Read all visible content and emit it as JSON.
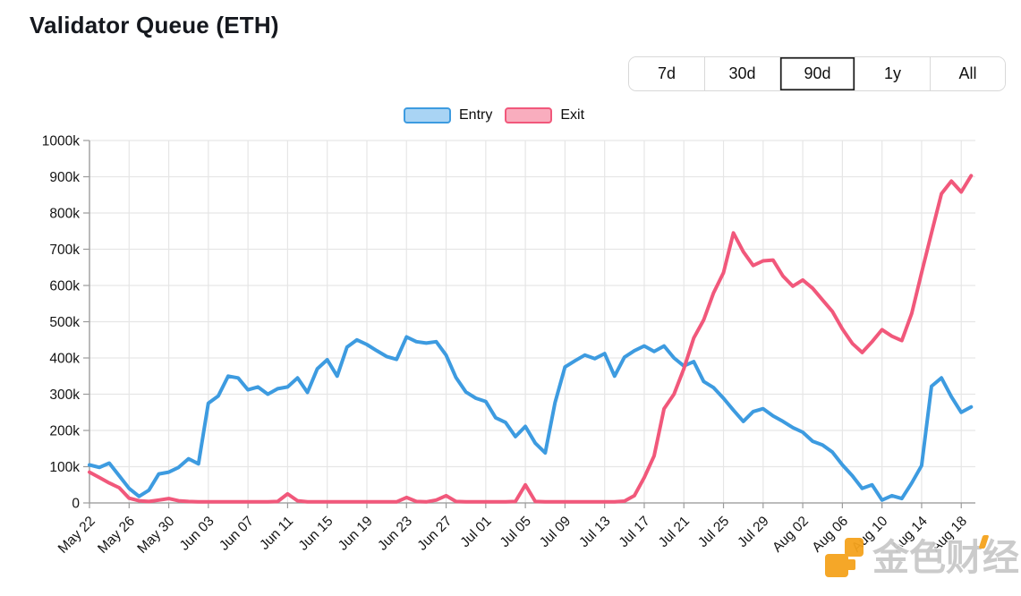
{
  "title": "Validator Queue (ETH)",
  "range_buttons": {
    "options": [
      "7d",
      "30d",
      "90d",
      "1y",
      "All"
    ],
    "selected": "90d"
  },
  "legend": [
    {
      "label": "Entry",
      "line_color": "#3d9be0",
      "fill_color": "#a9d4f4"
    },
    {
      "label": "Exit",
      "line_color": "#f1587b",
      "fill_color": "#f9adbe"
    }
  ],
  "watermark": {
    "text": "金色财经",
    "logo_color": "#f5a31d",
    "text_color": "#c9c9c9"
  },
  "chart_data": {
    "type": "line",
    "title": "Validator Queue (ETH)",
    "xlabel": "",
    "ylabel": "",
    "grid": true,
    "legend_position": "top-center",
    "ylim": [
      0,
      1000
    ],
    "y_unit": "k",
    "ytick_labels": [
      "0",
      "100k",
      "200k",
      "300k",
      "400k",
      "500k",
      "600k",
      "700k",
      "800k",
      "900k",
      "1000k"
    ],
    "xtick_every": 4,
    "xtick_labels": [
      "May 22",
      "May 26",
      "May 30",
      "Jun 03",
      "Jun 07",
      "Jun 11",
      "Jun 15",
      "Jun 19",
      "Jun 23",
      "Jun 27",
      "Jul 01",
      "Jul 05",
      "Jul 09",
      "Jul 13",
      "Jul 17",
      "Jul 21",
      "Jul 25",
      "Jul 29",
      "Aug 02",
      "Aug 06",
      "Aug 10",
      "Aug 14",
      "Aug 18"
    ],
    "x": [
      "May 22",
      "May 23",
      "May 24",
      "May 25",
      "May 26",
      "May 27",
      "May 28",
      "May 29",
      "May 30",
      "May 31",
      "Jun 01",
      "Jun 02",
      "Jun 03",
      "Jun 04",
      "Jun 05",
      "Jun 06",
      "Jun 07",
      "Jun 08",
      "Jun 09",
      "Jun 10",
      "Jun 11",
      "Jun 12",
      "Jun 13",
      "Jun 14",
      "Jun 15",
      "Jun 16",
      "Jun 17",
      "Jun 18",
      "Jun 19",
      "Jun 20",
      "Jun 21",
      "Jun 22",
      "Jun 23",
      "Jun 24",
      "Jun 25",
      "Jun 26",
      "Jun 27",
      "Jun 28",
      "Jun 29",
      "Jun 30",
      "Jul 01",
      "Jul 02",
      "Jul 03",
      "Jul 04",
      "Jul 05",
      "Jul 06",
      "Jul 07",
      "Jul 08",
      "Jul 09",
      "Jul 10",
      "Jul 11",
      "Jul 12",
      "Jul 13",
      "Jul 14",
      "Jul 15",
      "Jul 16",
      "Jul 17",
      "Jul 18",
      "Jul 19",
      "Jul 20",
      "Jul 21",
      "Jul 22",
      "Jul 23",
      "Jul 24",
      "Jul 25",
      "Jul 26",
      "Jul 27",
      "Jul 28",
      "Jul 29",
      "Jul 30",
      "Jul 31",
      "Aug 01",
      "Aug 02",
      "Aug 03",
      "Aug 04",
      "Aug 05",
      "Aug 06",
      "Aug 07",
      "Aug 08",
      "Aug 09",
      "Aug 10",
      "Aug 11",
      "Aug 12",
      "Aug 13",
      "Aug 14",
      "Aug 15",
      "Aug 16",
      "Aug 17",
      "Aug 18",
      "Aug 19"
    ],
    "series": [
      {
        "name": "Entry",
        "color": "#3d9be0",
        "values_unit": "thousand",
        "values": [
          105,
          98,
          110,
          75,
          40,
          18,
          35,
          80,
          85,
          98,
          122,
          108,
          275,
          295,
          350,
          345,
          312,
          320,
          300,
          315,
          320,
          345,
          305,
          370,
          395,
          350,
          430,
          450,
          437,
          420,
          404,
          396,
          458,
          445,
          441,
          445,
          408,
          346,
          306,
          289,
          280,
          235,
          222,
          183,
          211,
          165,
          138,
          277,
          375,
          392,
          408,
          398,
          412,
          350,
          402,
          420,
          433,
          418,
          433,
          400,
          378,
          390,
          335,
          318,
          289,
          256,
          225,
          252,
          260,
          240,
          225,
          208,
          195,
          170,
          160,
          140,
          105,
          75,
          40,
          50,
          8,
          20,
          12,
          55,
          103,
          322,
          345,
          293,
          250,
          265
        ]
      },
      {
        "name": "Exit",
        "color": "#f1587b",
        "values_unit": "thousand",
        "values": [
          85,
          70,
          55,
          42,
          13,
          6,
          4,
          8,
          12,
          6,
          4,
          3,
          3,
          3,
          3,
          3,
          3,
          3,
          3,
          4,
          25,
          6,
          3,
          3,
          3,
          3,
          3,
          3,
          3,
          3,
          3,
          3,
          15,
          4,
          3,
          8,
          20,
          4,
          3,
          3,
          3,
          3,
          3,
          4,
          50,
          4,
          3,
          3,
          3,
          3,
          3,
          3,
          3,
          3,
          5,
          20,
          70,
          130,
          260,
          300,
          370,
          455,
          505,
          580,
          635,
          745,
          693,
          655,
          668,
          670,
          626,
          598,
          615,
          592,
          560,
          528,
          480,
          440,
          415,
          445,
          478,
          460,
          448,
          523,
          635,
          745,
          853,
          888,
          858,
          903
        ]
      }
    ]
  }
}
